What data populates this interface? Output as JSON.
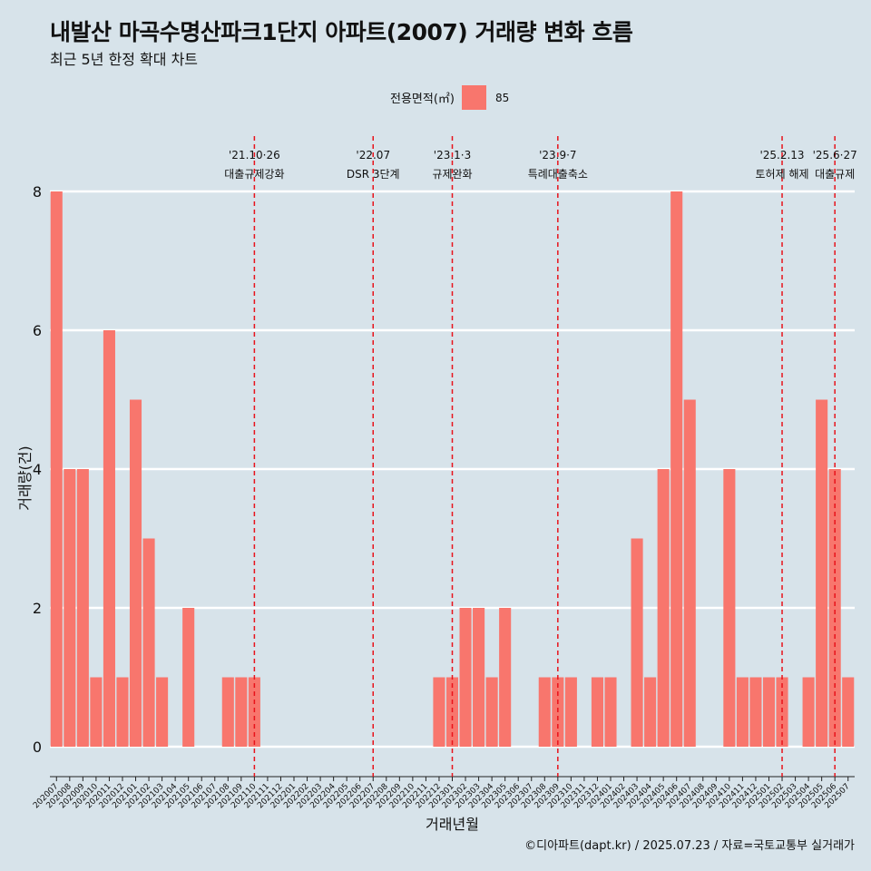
{
  "title": "내발산 마곡수명산파크1단지 아파트(2007) 거래량 변화 흐름",
  "subtitle": "최근 5년 한정 확대 차트",
  "legend": {
    "title": "전용면적(㎡)",
    "item": "85",
    "color": "#f8766d"
  },
  "caption": "©디아파트(dapt.kr) / 2025.07.23 / 자료=국토교통부 실거래가",
  "chart_data": {
    "type": "bar",
    "xlabel": "거래년월",
    "ylabel": "거래량(건)",
    "ylim": [
      0,
      8
    ],
    "yticks": [
      0,
      2,
      4,
      6,
      8
    ],
    "grid": true,
    "bar_color": "#f8766d",
    "categories": [
      "202007",
      "202008",
      "202009",
      "202010",
      "202011",
      "202012",
      "202101",
      "202102",
      "202103",
      "202104",
      "202105",
      "202106",
      "202107",
      "202108",
      "202109",
      "202110",
      "202111",
      "202112",
      "202201",
      "202202",
      "202203",
      "202204",
      "202205",
      "202206",
      "202207",
      "202208",
      "202209",
      "202210",
      "202211",
      "202212",
      "202301",
      "202302",
      "202303",
      "202304",
      "202305",
      "202306",
      "202307",
      "202308",
      "202309",
      "202310",
      "202311",
      "202312",
      "202401",
      "202402",
      "202403",
      "202404",
      "202405",
      "202406",
      "202407",
      "202408",
      "202409",
      "202410",
      "202411",
      "202412",
      "202501",
      "202502",
      "202503",
      "202504",
      "202505",
      "202506",
      "202507"
    ],
    "series": [
      {
        "name": "85",
        "values": [
          8,
          4,
          4,
          1,
          6,
          1,
          5,
          3,
          1,
          0,
          2,
          0,
          0,
          1,
          1,
          1,
          0,
          0,
          0,
          0,
          0,
          0,
          0,
          0,
          0,
          0,
          0,
          0,
          0,
          1,
          1,
          2,
          2,
          1,
          2,
          0,
          0,
          1,
          1,
          1,
          0,
          1,
          1,
          0,
          3,
          1,
          4,
          8,
          5,
          0,
          0,
          4,
          1,
          1,
          1,
          1,
          0,
          1,
          5,
          4,
          1
        ]
      }
    ],
    "annotations": [
      {
        "x": "202110",
        "date": "'21.10·26",
        "label": "대출규제강화"
      },
      {
        "x": "202207",
        "date": "'22.07",
        "label": "DSR 3단계"
      },
      {
        "x": "202301",
        "date": "'23.1·3",
        "label": "규제완화"
      },
      {
        "x": "202309",
        "date": "'23.9·7",
        "label": "특례대출축소"
      },
      {
        "x": "202502",
        "date": "'25.2.13",
        "label": "토허제 해제"
      },
      {
        "x": "202506",
        "date": "'25.6·27",
        "label": "대출규제"
      }
    ]
  }
}
